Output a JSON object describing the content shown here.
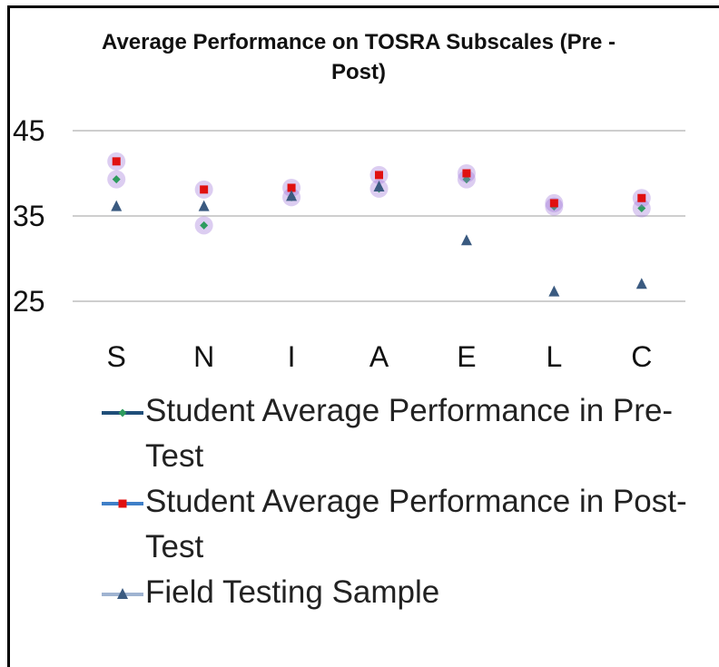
{
  "chart_data": {
    "type": "scatter",
    "title": "Average Performance on TOSRA Subscales (Pre - Post)",
    "categories": [
      "S",
      "N",
      "I",
      "A",
      "E",
      "L",
      "C"
    ],
    "series": [
      {
        "name": "Student Average Performance in Pre-Test",
        "color": "#2e9c5e",
        "marker": "diamond",
        "values": [
          39.3,
          33.9,
          37.2,
          38.2,
          39.3,
          36.1,
          35.9
        ]
      },
      {
        "name": "Student Average Performance in Post-Test",
        "color": "#e01010",
        "marker": "square",
        "values": [
          41.4,
          38.1,
          38.3,
          39.8,
          40.0,
          36.5,
          37.1
        ]
      },
      {
        "name": "Field Testing Sample",
        "color": "#3a5a80",
        "marker": "triangle",
        "values": [
          36.1,
          36.1,
          37.3,
          38.4,
          32.1,
          26.1,
          27.0
        ]
      }
    ],
    "ylim": [
      25,
      45
    ],
    "yticks": [
      25,
      35,
      45
    ],
    "grid": true
  }
}
